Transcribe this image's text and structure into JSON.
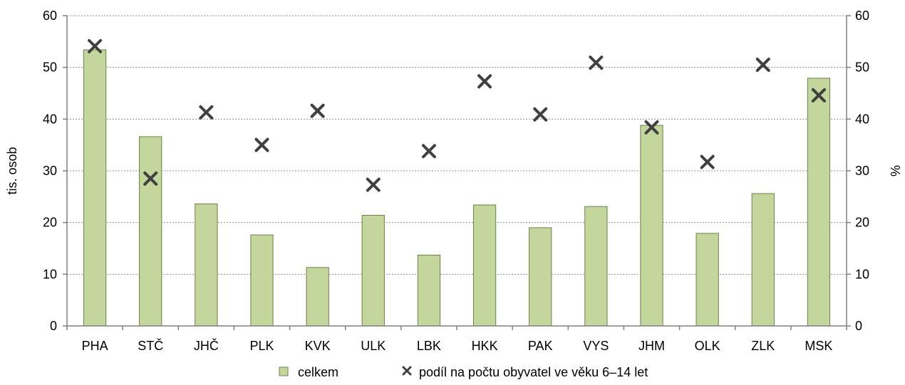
{
  "chart_data": {
    "type": "bar",
    "categories": [
      "PHA",
      "STČ",
      "JHČ",
      "PLK",
      "KVK",
      "ULK",
      "LBK",
      "HKK",
      "PAK",
      "VYS",
      "JHM",
      "OLK",
      "ZLK",
      "MSK"
    ],
    "series": [
      {
        "name": "celkem",
        "kind": "bar",
        "axis": "left",
        "color": "#c3d69b",
        "values": [
          53.4,
          36.6,
          23.6,
          17.6,
          11.3,
          21.4,
          13.7,
          23.4,
          19.0,
          23.1,
          38.8,
          17.9,
          25.6,
          47.9
        ]
      },
      {
        "name": "podíl na počtu obyvatel ve věku 6–14 let",
        "kind": "scatter",
        "marker": "x",
        "axis": "right",
        "color": "#404040",
        "values": [
          54.1,
          28.5,
          41.3,
          35.0,
          41.6,
          27.3,
          33.8,
          47.3,
          40.9,
          50.9,
          38.4,
          31.7,
          50.5,
          44.6
        ]
      }
    ],
    "ylabel": "tis. osob",
    "y2label": "%",
    "ylim": [
      0,
      60
    ],
    "y2lim": [
      0,
      60
    ],
    "yticks": [
      0,
      10,
      20,
      30,
      40,
      50,
      60
    ],
    "grid": true,
    "legend": "bottom"
  }
}
